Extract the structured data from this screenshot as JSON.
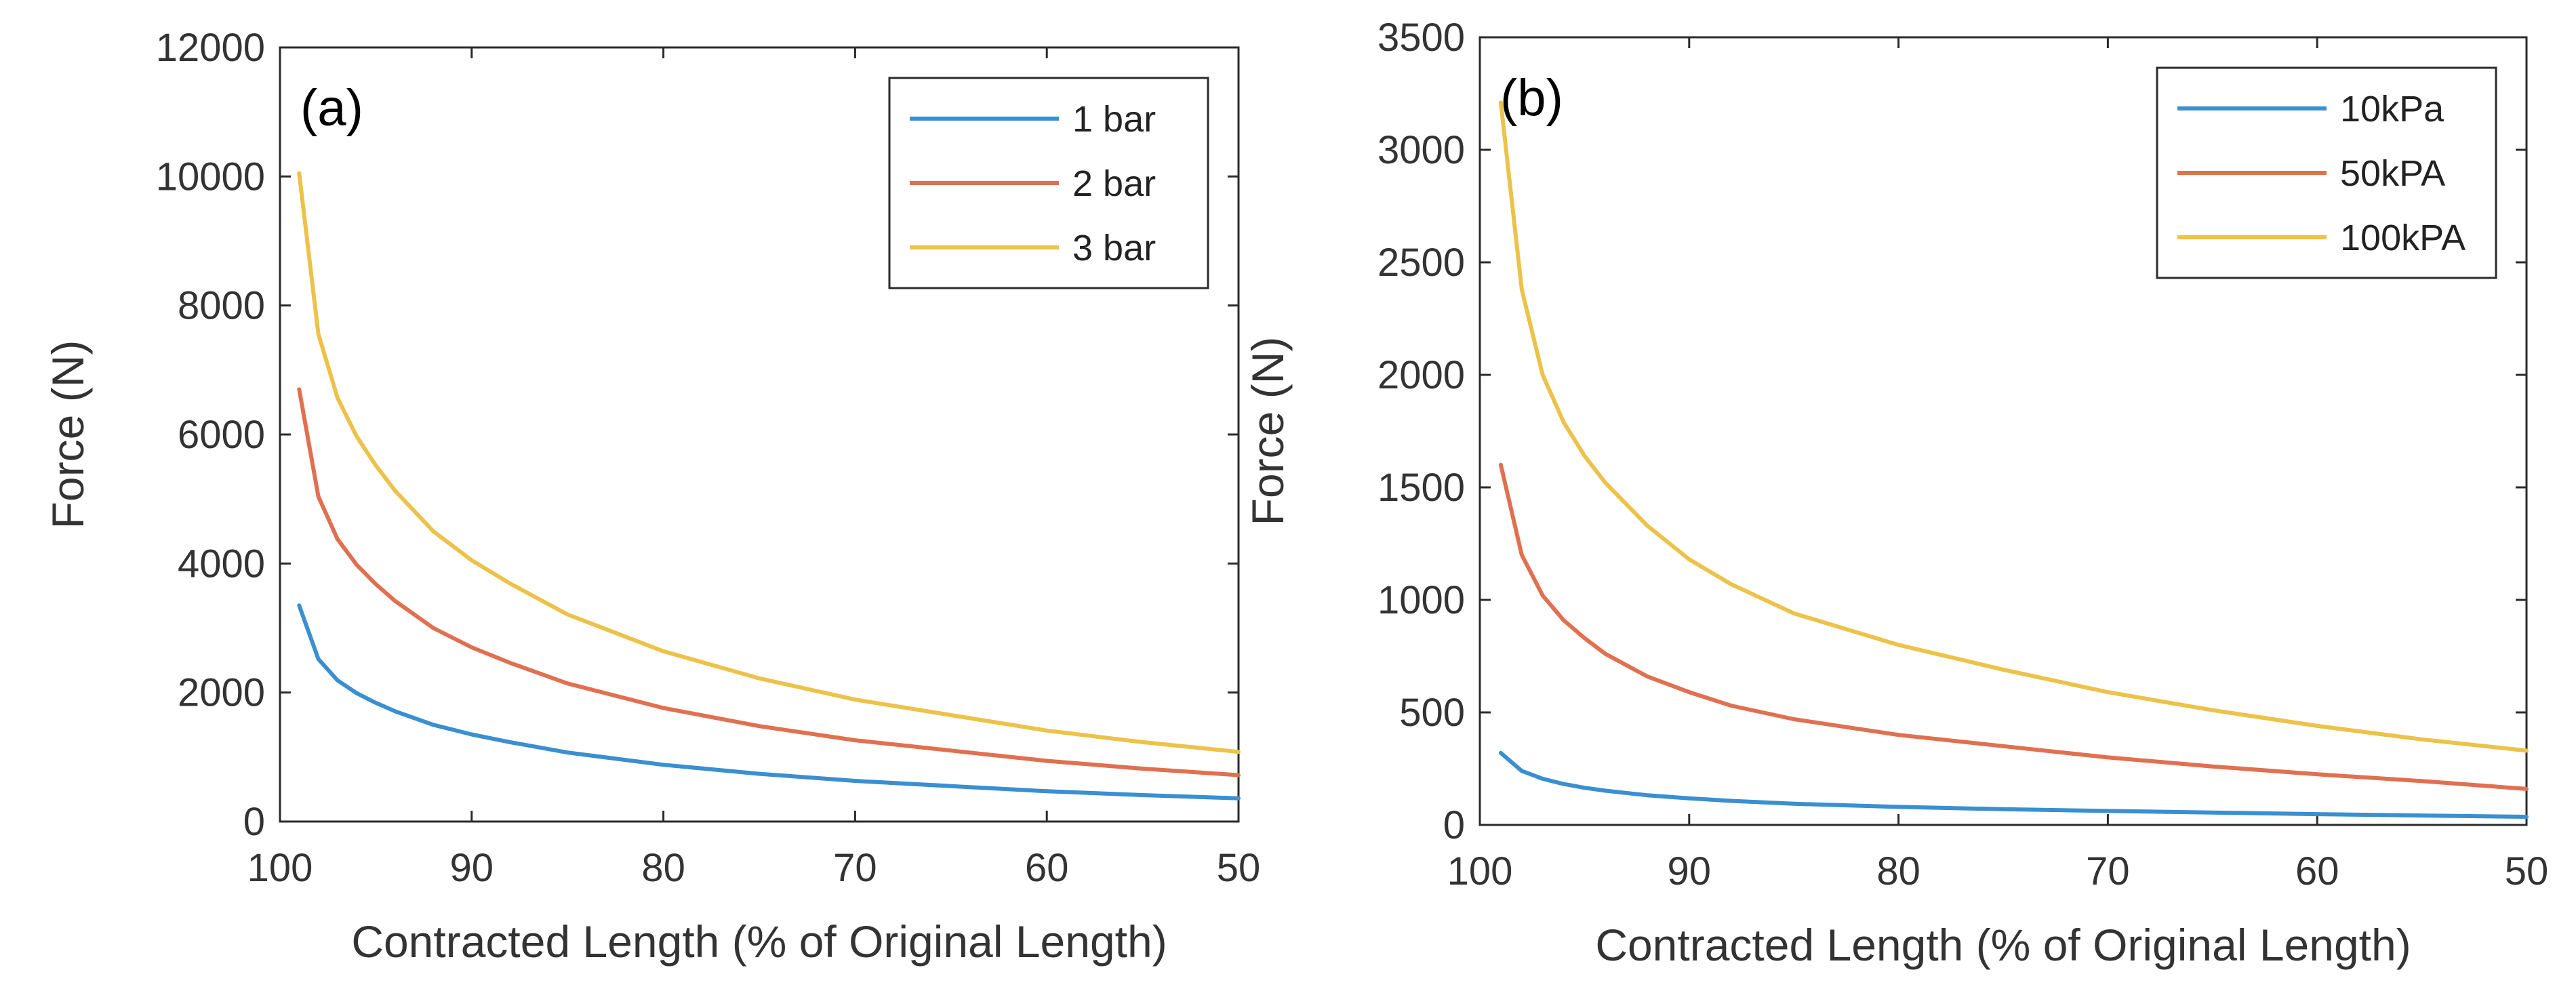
{
  "chart_data": [
    {
      "type": "line",
      "panel_label": "(a)",
      "xlabel": "Contracted Length (% of Original Length)",
      "ylabel": "Force (N)",
      "xlim": [
        100,
        50
      ],
      "ylim": [
        0,
        12000
      ],
      "x_ticks": [
        100,
        90,
        80,
        70,
        60,
        50
      ],
      "y_ticks": [
        0,
        2000,
        4000,
        6000,
        8000,
        10000,
        12000
      ],
      "x_tick_labels": [
        "100",
        "90",
        "80",
        "70",
        "60",
        "50"
      ],
      "y_tick_labels": [
        "0",
        "2000",
        "4000",
        "6000",
        "8000",
        "10000",
        "12000"
      ],
      "legend_position": "top-right",
      "x": [
        99,
        98,
        97,
        96,
        95,
        94,
        92,
        90,
        88,
        85,
        80,
        75,
        70,
        65,
        60,
        55,
        50
      ],
      "series": [
        {
          "name": "1 bar",
          "color": "#3A8FD0",
          "values": [
            3350,
            2520,
            2190,
            1990,
            1840,
            1710,
            1500,
            1350,
            1230,
            1070,
            880,
            740,
            630,
            550,
            470,
            410,
            360
          ]
        },
        {
          "name": "2 bar",
          "color": "#E07050",
          "values": [
            6700,
            5040,
            4380,
            3980,
            3680,
            3420,
            3000,
            2700,
            2460,
            2140,
            1760,
            1480,
            1260,
            1100,
            940,
            820,
            720
          ]
        },
        {
          "name": "3 bar",
          "color": "#ECC24A",
          "values": [
            10050,
            7560,
            6570,
            5970,
            5520,
            5130,
            4500,
            4050,
            3690,
            3210,
            2640,
            2220,
            1890,
            1650,
            1410,
            1230,
            1080
          ]
        }
      ]
    },
    {
      "type": "line",
      "panel_label": "(b)",
      "xlabel": "Contracted Length (% of Original Length)",
      "ylabel": "Force (N)",
      "xlim": [
        100,
        50
      ],
      "ylim": [
        0,
        3500
      ],
      "x_ticks": [
        100,
        90,
        80,
        70,
        60,
        50
      ],
      "y_ticks": [
        0,
        500,
        1000,
        1500,
        2000,
        2500,
        3000,
        3500
      ],
      "x_tick_labels": [
        "100",
        "90",
        "80",
        "70",
        "60",
        "50"
      ],
      "y_tick_labels": [
        "0",
        "500",
        "1000",
        "1500",
        "2000",
        "2500",
        "3000",
        "3500"
      ],
      "legend_position": "top-right",
      "x": [
        99,
        98,
        97,
        96,
        95,
        94,
        92,
        90,
        88,
        85,
        80,
        75,
        70,
        65,
        60,
        55,
        50
      ],
      "series": [
        {
          "name": "10kPa",
          "color": "#3A8FD0",
          "values": [
            320,
            240,
            205,
            182,
            165,
            152,
            132,
            118,
            107,
            94,
            80,
            70,
            62,
            55,
            48,
            42,
            36
          ]
        },
        {
          "name": "50kPA",
          "color": "#E07050",
          "values": [
            1600,
            1200,
            1020,
            910,
            830,
            760,
            660,
            590,
            530,
            470,
            400,
            350,
            300,
            260,
            225,
            195,
            160
          ]
        },
        {
          "name": "100kPA",
          "color": "#ECC24A",
          "values": [
            3210,
            2380,
            2000,
            1790,
            1640,
            1520,
            1330,
            1180,
            1070,
            940,
            800,
            690,
            590,
            510,
            440,
            380,
            330
          ]
        }
      ]
    }
  ]
}
